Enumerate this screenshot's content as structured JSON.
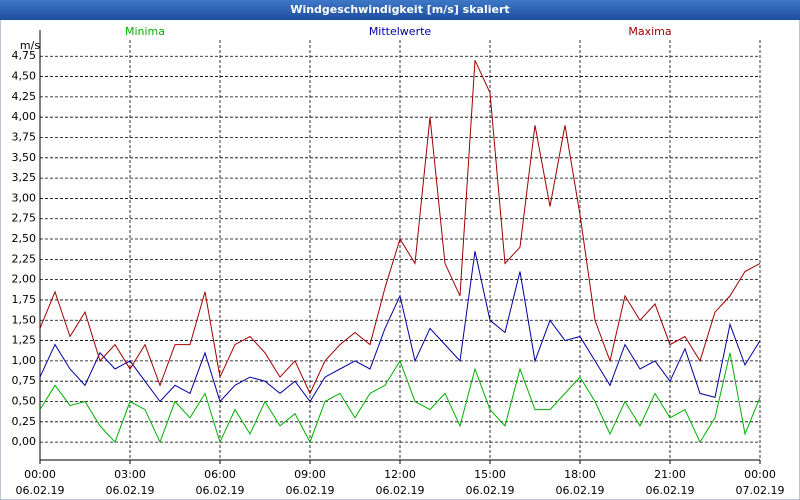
{
  "chart_data": {
    "type": "line",
    "title": "Windgeschwindigkeit [m/s] skaliert",
    "y_unit": "m/s",
    "x": [
      0,
      0.5,
      1,
      1.5,
      2,
      2.5,
      3,
      3.5,
      4,
      4.5,
      5,
      5.5,
      6,
      6.5,
      7,
      7.5,
      8,
      8.5,
      9,
      9.5,
      10,
      10.5,
      11,
      11.5,
      12,
      12.5,
      13,
      13.5,
      14,
      14.5,
      15,
      15.5,
      16,
      16.5,
      17,
      17.5,
      18,
      18.5,
      19,
      19.5,
      20,
      20.5,
      21,
      21.5,
      22,
      22.5,
      23,
      23.5,
      24
    ],
    "series": [
      {
        "name": "Minima",
        "color": "#00b000",
        "values": [
          0.4,
          0.7,
          0.45,
          0.5,
          0.2,
          0.0,
          0.5,
          0.4,
          0.0,
          0.5,
          0.3,
          0.6,
          0.0,
          0.4,
          0.1,
          0.5,
          0.2,
          0.35,
          0.0,
          0.5,
          0.6,
          0.3,
          0.6,
          0.7,
          1.0,
          0.5,
          0.4,
          0.6,
          0.2,
          0.9,
          0.4,
          0.2,
          0.9,
          0.4,
          0.4,
          0.6,
          0.8,
          0.5,
          0.1,
          0.5,
          0.2,
          0.6,
          0.3,
          0.4,
          0.0,
          0.3,
          1.1,
          0.1,
          0.55
        ]
      },
      {
        "name": "Mittelwerte",
        "color": "#0000a0",
        "values": [
          0.8,
          1.2,
          0.9,
          0.7,
          1.1,
          0.9,
          1.0,
          0.75,
          0.5,
          0.7,
          0.6,
          1.1,
          0.5,
          0.7,
          0.8,
          0.75,
          0.6,
          0.75,
          0.5,
          0.8,
          0.9,
          1.0,
          0.9,
          1.4,
          1.8,
          1.0,
          1.4,
          1.2,
          1.0,
          2.35,
          1.5,
          1.35,
          2.1,
          1.0,
          1.5,
          1.25,
          1.3,
          1.0,
          0.7,
          1.2,
          0.9,
          1.0,
          0.75,
          1.15,
          0.6,
          0.55,
          1.45,
          0.95,
          1.25
        ]
      },
      {
        "name": "Maxima",
        "color": "#a00000",
        "values": [
          1.4,
          1.85,
          1.3,
          1.6,
          1.0,
          1.2,
          0.9,
          1.2,
          0.7,
          1.2,
          1.2,
          1.85,
          0.8,
          1.2,
          1.3,
          1.1,
          0.8,
          1.0,
          0.6,
          1.0,
          1.2,
          1.35,
          1.2,
          1.9,
          2.5,
          2.2,
          4.0,
          2.2,
          1.8,
          4.7,
          4.3,
          2.2,
          2.4,
          3.9,
          2.9,
          3.9,
          2.8,
          1.5,
          1.0,
          1.8,
          1.5,
          1.7,
          1.2,
          1.3,
          1.0,
          1.6,
          1.8,
          2.1,
          2.2
        ]
      }
    ],
    "xlim": [
      0,
      24
    ],
    "xticks": [
      {
        "value": 0,
        "label": "00:00"
      },
      {
        "value": 3,
        "label": "03:00"
      },
      {
        "value": 6,
        "label": "06:00"
      },
      {
        "value": 9,
        "label": "09:00"
      },
      {
        "value": 12,
        "label": "12:00"
      },
      {
        "value": 15,
        "label": "15:00"
      },
      {
        "value": 18,
        "label": "18:00"
      },
      {
        "value": 21,
        "label": "21:00"
      },
      {
        "value": 24,
        "label": "00:00"
      }
    ],
    "xtick_dates": [
      "06.02.19",
      "06.02.19",
      "06.02.19",
      "06.02.19",
      "06.02.19",
      "06.02.19",
      "06.02.19",
      "06.02.19",
      "07.02.19"
    ],
    "ylim": [
      -0.22,
      4.95
    ],
    "yticks": [
      {
        "value": 0,
        "label": "0,00"
      },
      {
        "value": 0.25,
        "label": "0,25"
      },
      {
        "value": 0.5,
        "label": "0,50"
      },
      {
        "value": 0.75,
        "label": "0,75"
      },
      {
        "value": 1,
        "label": "1,00"
      },
      {
        "value": 1.25,
        "label": "1,25"
      },
      {
        "value": 1.5,
        "label": "1,50"
      },
      {
        "value": 1.75,
        "label": "1,75"
      },
      {
        "value": 2,
        "label": "2,00"
      },
      {
        "value": 2.25,
        "label": "2,25"
      },
      {
        "value": 2.5,
        "label": "2,50"
      },
      {
        "value": 2.75,
        "label": "2,75"
      },
      {
        "value": 3,
        "label": "3,00"
      },
      {
        "value": 3.25,
        "label": "3,25"
      },
      {
        "value": 3.5,
        "label": "3,50"
      },
      {
        "value": 3.75,
        "label": "3,75"
      },
      {
        "value": 4,
        "label": "4,00"
      },
      {
        "value": 4.25,
        "label": "4,25"
      },
      {
        "value": 4.5,
        "label": "4,50"
      },
      {
        "value": 4.75,
        "label": "4,75"
      }
    ],
    "grid": true
  }
}
